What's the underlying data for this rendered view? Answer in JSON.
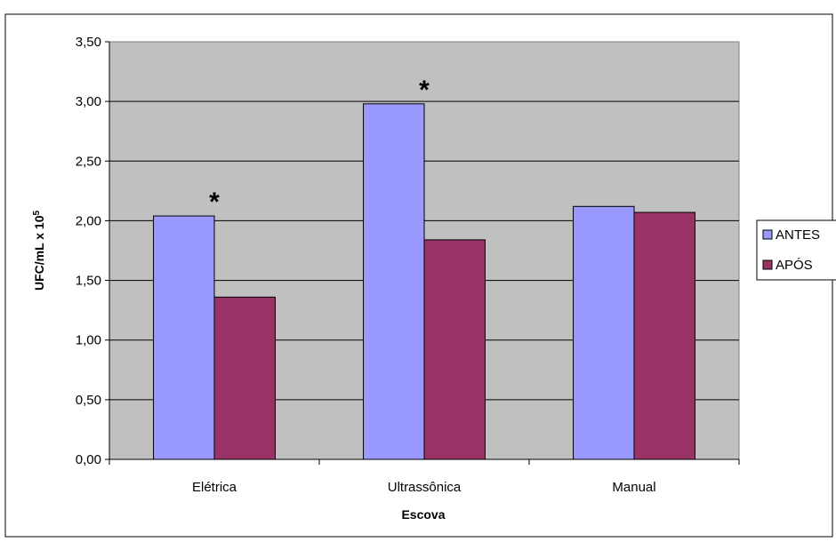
{
  "chart_data": {
    "type": "bar",
    "categories": [
      "Elétrica",
      "Ultrassônica",
      "Manual"
    ],
    "series": [
      {
        "name": "ANTES",
        "values": [
          2.04,
          2.98,
          2.12
        ],
        "color": "#9999ff"
      },
      {
        "name": "APÓS",
        "values": [
          1.36,
          1.84,
          2.07
        ],
        "color": "#993366"
      }
    ],
    "xlabel": "Escova",
    "ylabel": {
      "base": "UFC/mL x 10",
      "exponent": "5"
    },
    "ylim": [
      0,
      3.5
    ],
    "yticks": [
      "0,00",
      "0,50",
      "1,00",
      "1,50",
      "2,00",
      "2,50",
      "3,00",
      "3,50"
    ],
    "ytick_values": [
      0,
      0.5,
      1,
      1.5,
      2,
      2.5,
      3,
      3.5
    ],
    "annotations": [
      {
        "text": "*",
        "category": "Elétrica"
      },
      {
        "text": "*",
        "category": "Ultrassônica"
      }
    ],
    "grid": true,
    "legend_position": "right",
    "plot_background": "#c0c0c0"
  }
}
